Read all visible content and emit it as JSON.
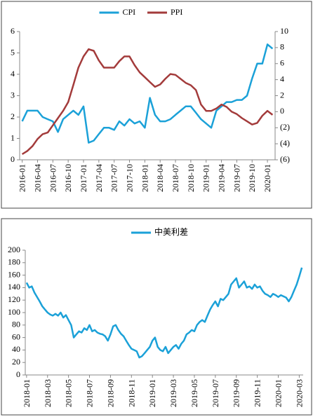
{
  "chart_data": [
    {
      "type": "line",
      "categories": [
        "2016-01",
        null,
        null,
        "2016-04",
        null,
        null,
        "2016-07",
        null,
        null,
        "2016-10",
        null,
        null,
        "2017-01",
        null,
        null,
        "2017-04",
        null,
        null,
        "2017-07",
        null,
        null,
        "2017-10",
        null,
        null,
        "2018-01",
        null,
        null,
        "2018-04",
        null,
        null,
        "2018-07",
        null,
        null,
        "2018-10",
        null,
        null,
        "2019-01",
        null,
        null,
        "2019-04",
        null,
        null,
        "2019-07",
        null,
        null,
        "2019-10",
        null,
        null,
        "2020-01",
        null
      ],
      "series": [
        {
          "name": "CPI",
          "color": "#1ba1d8",
          "values": [
            1.8,
            2.3,
            2.3,
            2.3,
            2.0,
            1.9,
            1.8,
            1.3,
            1.9,
            2.1,
            2.3,
            2.1,
            2.5,
            0.8,
            0.9,
            1.2,
            1.5,
            1.5,
            1.4,
            1.8,
            1.6,
            1.9,
            1.7,
            1.8,
            1.5,
            2.9,
            2.1,
            1.8,
            1.8,
            1.9,
            2.1,
            2.3,
            2.5,
            2.5,
            2.2,
            1.9,
            1.7,
            1.5,
            2.3,
            2.5,
            2.7,
            2.7,
            2.8,
            2.8,
            3.0,
            3.8,
            4.5,
            4.5,
            5.4,
            5.2
          ]
        },
        {
          "name": "PPI",
          "color": "#a33b3b",
          "axis": "y2",
          "values": [
            -5.3,
            -4.9,
            -4.3,
            -3.4,
            -2.8,
            -2.6,
            -1.7,
            -0.8,
            0.1,
            1.2,
            3.3,
            5.5,
            6.9,
            7.8,
            7.6,
            6.4,
            5.5,
            5.5,
            5.5,
            6.3,
            6.9,
            6.9,
            5.8,
            4.9,
            4.3,
            3.7,
            3.1,
            3.4,
            4.1,
            4.7,
            4.6,
            4.1,
            3.6,
            3.3,
            2.7,
            0.9,
            0.1,
            0.1,
            0.4,
            0.9,
            0.6,
            0.0,
            -0.3,
            -0.8,
            -1.2,
            -1.6,
            -1.4,
            -0.5,
            0.1,
            -0.4
          ]
        }
      ],
      "ylim": [
        0,
        6
      ],
      "yticks": [
        0,
        1,
        2,
        3,
        4,
        5,
        6
      ],
      "y2lim": [
        -6,
        10
      ],
      "y2ticks": [
        {
          "value": -6,
          "label": "(6)"
        },
        {
          "value": -4,
          "label": "(4)"
        },
        {
          "value": -2,
          "label": "(2)"
        },
        0,
        2,
        4,
        6,
        8,
        10
      ],
      "y2_negative_color": "#c00000",
      "legend": "top"
    },
    {
      "type": "line",
      "categories": [
        "2018-01",
        null,
        null,
        null,
        null,
        null,
        null,
        null,
        "2018-03",
        null,
        null,
        null,
        null,
        null,
        null,
        null,
        "2018-05",
        null,
        null,
        null,
        null,
        null,
        null,
        null,
        "2018-07",
        null,
        null,
        null,
        null,
        null,
        null,
        null,
        "2018-09",
        null,
        null,
        null,
        null,
        null,
        null,
        null,
        "2018-11",
        null,
        null,
        null,
        null,
        null,
        null,
        null,
        "2019-01",
        null,
        null,
        null,
        null,
        null,
        null,
        null,
        "2019-03",
        null,
        null,
        null,
        null,
        null,
        null,
        null,
        "2019-05",
        null,
        null,
        null,
        null,
        null,
        null,
        null,
        "2019-07",
        null,
        null,
        null,
        null,
        null,
        null,
        null,
        "2019-09",
        null,
        null,
        null,
        null,
        null,
        null,
        null,
        "2019-11",
        null,
        null,
        null,
        null,
        null,
        null,
        null,
        "2020-01",
        null,
        null,
        null,
        null,
        null,
        null,
        null,
        "2020-03",
        null
      ],
      "series": [
        {
          "name": "中美利差",
          "color": "#1ba1d8",
          "values": [
            148,
            140,
            142,
            132,
            125,
            118,
            110,
            105,
            100,
            97,
            95,
            98,
            95,
            100,
            92,
            96,
            88,
            80,
            60,
            65,
            70,
            68,
            75,
            72,
            80,
            70,
            72,
            68,
            66,
            65,
            62,
            55,
            65,
            78,
            80,
            72,
            66,
            62,
            55,
            48,
            42,
            40,
            38,
            28,
            30,
            35,
            40,
            45,
            55,
            60,
            45,
            40,
            38,
            45,
            35,
            40,
            45,
            48,
            42,
            50,
            55,
            65,
            68,
            72,
            70,
            80,
            85,
            88,
            85,
            95,
            105,
            112,
            118,
            110,
            122,
            120,
            125,
            130,
            145,
            150,
            155,
            140,
            145,
            150,
            140,
            142,
            138,
            145,
            140,
            142,
            135,
            130,
            128,
            125,
            130,
            128,
            125,
            128,
            126,
            124,
            118,
            125,
            135,
            145,
            158,
            172
          ]
        }
      ],
      "ylim": [
        0,
        200
      ],
      "yticks": [
        0,
        20,
        40,
        60,
        80,
        100,
        120,
        140,
        160,
        180,
        200
      ],
      "legend": "top"
    }
  ]
}
